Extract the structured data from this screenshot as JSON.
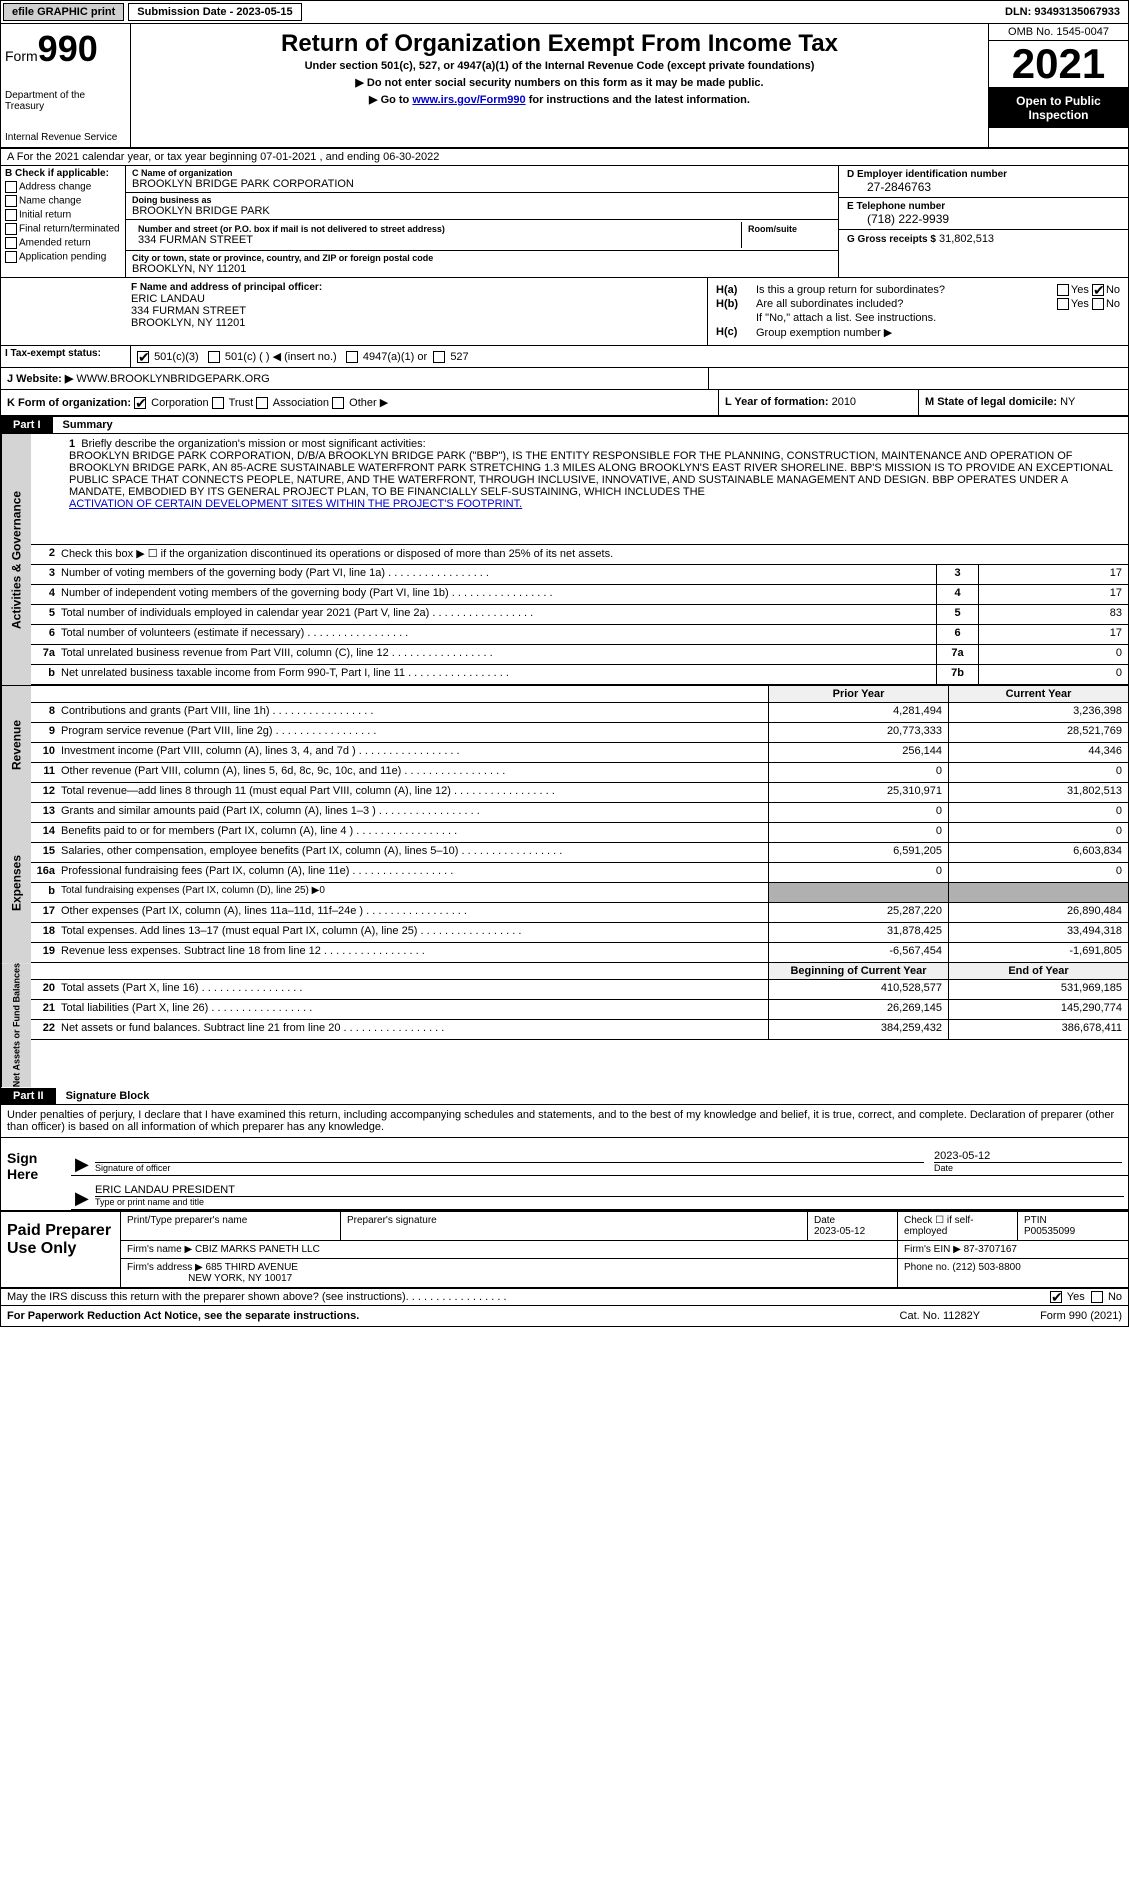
{
  "topbar": {
    "efile": "efile GRAPHIC print",
    "submission": "Submission Date - 2023-05-15",
    "dln": "DLN: 93493135067933"
  },
  "header": {
    "form_prefix": "Form",
    "form_num": "990",
    "dept": "Department of the Treasury",
    "irs": "Internal Revenue Service",
    "title": "Return of Organization Exempt From Income Tax",
    "subtitle": "Under section 501(c), 527, or 4947(a)(1) of the Internal Revenue Code (except private foundations)",
    "arrow1": "▶ Do not enter social security numbers on this form as it may be made public.",
    "arrow2_pre": "▶ Go to ",
    "arrow2_link": "www.irs.gov/Form990",
    "arrow2_post": " for instructions and the latest information.",
    "omb": "OMB No. 1545-0047",
    "year": "2021",
    "open": "Open to Public Inspection"
  },
  "line_a": "A For the 2021 calendar year, or tax year beginning 07-01-2021   , and ending 06-30-2022",
  "col_b": {
    "header": "B Check if applicable:",
    "items": [
      "Address change",
      "Name change",
      "Initial return",
      "Final return/terminated",
      "Amended return",
      "Application pending"
    ]
  },
  "col_c": {
    "name_label": "C Name of organization",
    "name": "BROOKLYN BRIDGE PARK CORPORATION",
    "dba_label": "Doing business as",
    "dba": "BROOKLYN BRIDGE PARK",
    "street_label": "Number and street (or P.O. box if mail is not delivered to street address)",
    "street": "334 FURMAN STREET",
    "suite_label": "Room/suite",
    "city_label": "City or town, state or province, country, and ZIP or foreign postal code",
    "city": "BROOKLYN, NY  11201"
  },
  "col_d": {
    "ein_label": "D Employer identification number",
    "ein": "27-2846763",
    "phone_label": "E Telephone number",
    "phone": "(718) 222-9939",
    "gross_label": "G Gross receipts $",
    "gross": "31,802,513"
  },
  "f": {
    "label": "F Name and address of principal officer:",
    "name": "ERIC LANDAU",
    "street": "334 FURMAN STREET",
    "city": "BROOKLYN, NY  11201"
  },
  "h": {
    "a_label": "H(a)",
    "a_text": "Is this a group return for subordinates?",
    "a_yes": "Yes",
    "a_no": "No",
    "b_label": "H(b)",
    "b_text": "Are all subordinates included?",
    "b_note": "If \"No,\" attach a list. See instructions.",
    "c_label": "H(c)",
    "c_text": "Group exemption number ▶"
  },
  "i": {
    "label": "I  Tax-exempt status:",
    "opt1": "501(c)(3)",
    "opt2": "501(c) (   ) ◀ (insert no.)",
    "opt3": "4947(a)(1) or",
    "opt4": "527"
  },
  "j": {
    "label": "J  Website: ▶",
    "value": "WWW.BROOKLYNBRIDGEPARK.ORG"
  },
  "k": {
    "label": "K Form of organization:",
    "corp": "Corporation",
    "trust": "Trust",
    "assoc": "Association",
    "other": "Other ▶"
  },
  "l": {
    "label": "L Year of formation:",
    "value": "2010"
  },
  "m": {
    "label": "M State of legal domicile:",
    "value": "NY"
  },
  "part1": {
    "label": "Part I",
    "title": "Summary"
  },
  "mission": {
    "num": "1",
    "intro": "Briefly describe the organization's mission or most significant activities:",
    "text": "BROOKLYN BRIDGE PARK CORPORATION, D/B/A BROOKLYN BRIDGE PARK (\"BBP\"), IS THE ENTITY RESPONSIBLE FOR THE PLANNING, CONSTRUCTION, MAINTENANCE AND OPERATION OF BROOKLYN BRIDGE PARK, AN 85-ACRE SUSTAINABLE WATERFRONT PARK STRETCHING 1.3 MILES ALONG BROOKLYN'S EAST RIVER SHORELINE. BBP'S MISSION IS TO PROVIDE AN EXCEPTIONAL PUBLIC SPACE THAT CONNECTS PEOPLE, NATURE, AND THE WATERFRONT, THROUGH INCLUSIVE, INNOVATIVE, AND SUSTAINABLE MANAGEMENT AND DESIGN. BBP OPERATES UNDER A MANDATE, EMBODIED BY ITS GENERAL PROJECT PLAN, TO BE FINANCIALLY SELF-SUSTAINING, WHICH INCLUDES THE ",
    "link": "ACTIVATION OF CERTAIN DEVELOPMENT SITES WITHIN THE PROJECT'S FOOTPRINT."
  },
  "side_labels": {
    "gov": "Activities & Governance",
    "rev": "Revenue",
    "exp": "Expenses",
    "net": "Net Assets or Fund Balances"
  },
  "gov_lines": [
    {
      "n": "2",
      "t": "Check this box ▶ ☐ if the organization discontinued its operations or disposed of more than 25% of its net assets."
    },
    {
      "n": "3",
      "t": "Number of voting members of the governing body (Part VI, line 1a)",
      "box": "3",
      "v": "17"
    },
    {
      "n": "4",
      "t": "Number of independent voting members of the governing body (Part VI, line 1b)",
      "box": "4",
      "v": "17"
    },
    {
      "n": "5",
      "t": "Total number of individuals employed in calendar year 2021 (Part V, line 2a)",
      "box": "5",
      "v": "83"
    },
    {
      "n": "6",
      "t": "Total number of volunteers (estimate if necessary)",
      "box": "6",
      "v": "17"
    },
    {
      "n": "7a",
      "t": "Total unrelated business revenue from Part VIII, column (C), line 12",
      "box": "7a",
      "v": "0"
    },
    {
      "n": "b",
      "t": "Net unrelated business taxable income from Form 990-T, Part I, line 11",
      "box": "7b",
      "v": "0"
    }
  ],
  "col_headers": {
    "prior": "Prior Year",
    "curr": "Current Year"
  },
  "rev_lines": [
    {
      "n": "8",
      "t": "Contributions and grants (Part VIII, line 1h)",
      "p": "4,281,494",
      "c": "3,236,398"
    },
    {
      "n": "9",
      "t": "Program service revenue (Part VIII, line 2g)",
      "p": "20,773,333",
      "c": "28,521,769"
    },
    {
      "n": "10",
      "t": "Investment income (Part VIII, column (A), lines 3, 4, and 7d )",
      "p": "256,144",
      "c": "44,346"
    },
    {
      "n": "11",
      "t": "Other revenue (Part VIII, column (A), lines 5, 6d, 8c, 9c, 10c, and 11e)",
      "p": "0",
      "c": "0"
    },
    {
      "n": "12",
      "t": "Total revenue—add lines 8 through 11 (must equal Part VIII, column (A), line 12)",
      "p": "25,310,971",
      "c": "31,802,513"
    }
  ],
  "exp_lines": [
    {
      "n": "13",
      "t": "Grants and similar amounts paid (Part IX, column (A), lines 1–3 )",
      "p": "0",
      "c": "0"
    },
    {
      "n": "14",
      "t": "Benefits paid to or for members (Part IX, column (A), line 4 )",
      "p": "0",
      "c": "0"
    },
    {
      "n": "15",
      "t": "Salaries, other compensation, employee benefits (Part IX, column (A), lines 5–10)",
      "p": "6,591,205",
      "c": "6,603,834"
    },
    {
      "n": "16a",
      "t": "Professional fundraising fees (Part IX, column (A), line 11e)",
      "p": "0",
      "c": "0"
    },
    {
      "n": "b",
      "t": "Total fundraising expenses (Part IX, column (D), line 25) ▶0",
      "shaded": true
    },
    {
      "n": "17",
      "t": "Other expenses (Part IX, column (A), lines 11a–11d, 11f–24e )",
      "p": "25,287,220",
      "c": "26,890,484"
    },
    {
      "n": "18",
      "t": "Total expenses. Add lines 13–17 (must equal Part IX, column (A), line 25)",
      "p": "31,878,425",
      "c": "33,494,318"
    },
    {
      "n": "19",
      "t": "Revenue less expenses. Subtract line 18 from line 12",
      "p": "-6,567,454",
      "c": "-1,691,805"
    }
  ],
  "net_headers": {
    "begin": "Beginning of Current Year",
    "end": "End of Year"
  },
  "net_lines": [
    {
      "n": "20",
      "t": "Total assets (Part X, line 16)",
      "p": "410,528,577",
      "c": "531,969,185"
    },
    {
      "n": "21",
      "t": "Total liabilities (Part X, line 26)",
      "p": "26,269,145",
      "c": "145,290,774"
    },
    {
      "n": "22",
      "t": "Net assets or fund balances. Subtract line 21 from line 20",
      "p": "384,259,432",
      "c": "386,678,411"
    }
  ],
  "part2": {
    "label": "Part II",
    "title": "Signature Block"
  },
  "penalty": "Under penalties of perjury, I declare that I have examined this return, including accompanying schedules and statements, and to the best of my knowledge and belief, it is true, correct, and complete. Declaration of preparer (other than officer) is based on all information of which preparer has any knowledge.",
  "sign": {
    "here": "Sign Here",
    "sig_label": "Signature of officer",
    "date_label": "Date",
    "date": "2023-05-12",
    "name": "ERIC LANDAU  PRESIDENT",
    "name_label": "Type or print name and title"
  },
  "prep": {
    "label": "Paid Preparer Use Only",
    "h1": "Print/Type preparer's name",
    "h2": "Preparer's signature",
    "h3": "Date",
    "h3v": "2023-05-12",
    "h4": "Check ☐ if self-employed",
    "h5": "PTIN",
    "h5v": "P00535099",
    "firm_label": "Firm's name    ▶",
    "firm": "CBIZ MARKS PANETH LLC",
    "ein_label": "Firm's EIN ▶",
    "ein": "87-3707167",
    "addr_label": "Firm's address ▶",
    "addr1": "685 THIRD AVENUE",
    "addr2": "NEW YORK, NY  10017",
    "phone_label": "Phone no.",
    "phone": "(212) 503-8800"
  },
  "discuss": {
    "text": "May the IRS discuss this return with the preparer shown above? (see instructions)",
    "yes": "Yes",
    "no": "No"
  },
  "footer": {
    "left": "For Paperwork Reduction Act Notice, see the separate instructions.",
    "mid": "Cat. No. 11282Y",
    "right": "Form 990 (2021)"
  }
}
